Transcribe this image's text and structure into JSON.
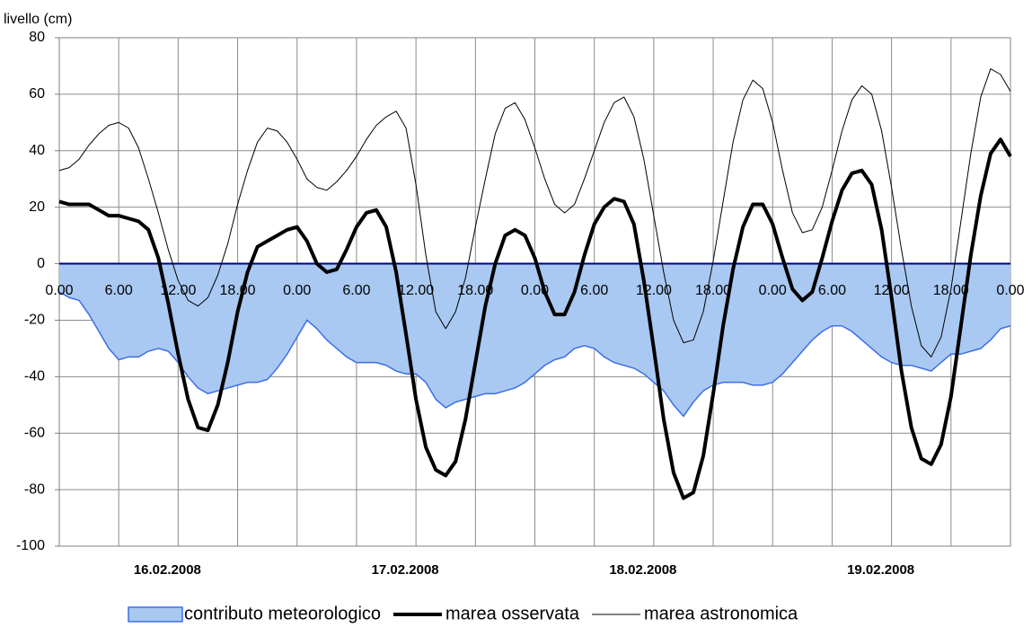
{
  "chart_data": {
    "type": "line",
    "y_label": "livello (cm)",
    "x": [
      0,
      1,
      2,
      3,
      4,
      5,
      6,
      7,
      8,
      9,
      10,
      11,
      12,
      13,
      14,
      15,
      16,
      17,
      18,
      19,
      20,
      21,
      22,
      23,
      24,
      25,
      26,
      27,
      28,
      29,
      30,
      31,
      32,
      33,
      34,
      35,
      36,
      37,
      38,
      39,
      40,
      41,
      42,
      43,
      44,
      45,
      46,
      47,
      48,
      49,
      50,
      51,
      52,
      53,
      54,
      55,
      56,
      57,
      58,
      59,
      60,
      61,
      62,
      63,
      64,
      65,
      66,
      67,
      68,
      69,
      70,
      71,
      72,
      73,
      74,
      75,
      76,
      77,
      78,
      79,
      80,
      81,
      82,
      83,
      84,
      85,
      86,
      87,
      88,
      89,
      90,
      91,
      92,
      93,
      94,
      95,
      96
    ],
    "xlim": [
      0,
      96
    ],
    "xticks": [
      {
        "value": 0,
        "label": "0.00"
      },
      {
        "value": 6,
        "label": "6.00"
      },
      {
        "value": 12,
        "label": "12.00"
      },
      {
        "value": 18,
        "label": "18.00"
      },
      {
        "value": 24,
        "label": "0.00"
      },
      {
        "value": 30,
        "label": "6.00"
      },
      {
        "value": 36,
        "label": "12.00"
      },
      {
        "value": 42,
        "label": "18.00"
      },
      {
        "value": 48,
        "label": "0.00"
      },
      {
        "value": 54,
        "label": "6.00"
      },
      {
        "value": 60,
        "label": "12.00"
      },
      {
        "value": 66,
        "label": "18.00"
      },
      {
        "value": 72,
        "label": "0.00"
      },
      {
        "value": 78,
        "label": "6.00"
      },
      {
        "value": 84,
        "label": "12.00"
      },
      {
        "value": 90,
        "label": "18.00"
      },
      {
        "value": 96,
        "label": "0.00"
      }
    ],
    "day_labels": [
      "16.02.2008",
      "17.02.2008",
      "18.02.2008",
      "19.02.2008"
    ],
    "ylim": [
      -100,
      80
    ],
    "yticks": [
      -100,
      -80,
      -60,
      -40,
      -20,
      0,
      20,
      40,
      60,
      80
    ],
    "grid": true,
    "legend": "bottom",
    "series": [
      {
        "name": "contributo meteorologico",
        "kind": "area",
        "color": "#a9c9f2",
        "edge": "#3d6ee6",
        "values": [
          -10,
          -12,
          -13,
          -18,
          -24,
          -30,
          -34,
          -33,
          -33,
          -31,
          -30,
          -31,
          -35,
          -40,
          -44,
          -46,
          -45,
          -44,
          -43,
          -42,
          -42,
          -41,
          -37,
          -32,
          -26,
          -20,
          -23,
          -27,
          -30,
          -33,
          -35,
          -35,
          -35,
          -36,
          -38,
          -39,
          -39,
          -42,
          -48,
          -51,
          -49,
          -48,
          -47,
          -46,
          -46,
          -45,
          -44,
          -42,
          -39,
          -36,
          -34,
          -33,
          -30,
          -29,
          -30,
          -33,
          -35,
          -36,
          -37,
          -39,
          -42,
          -45,
          -50,
          -54,
          -49,
          -45,
          -43,
          -42,
          -42,
          -42,
          -43,
          -43,
          -42,
          -39,
          -35,
          -31,
          -27,
          -24,
          -22,
          -22,
          -24,
          -27,
          -30,
          -33,
          -35,
          -36,
          -36,
          -37,
          -38,
          -35,
          -32,
          -32,
          -31,
          -30,
          -27,
          -23,
          -22
        ]
      },
      {
        "name": "marea osservata",
        "kind": "line",
        "color": "#000000",
        "width": 4,
        "values": [
          22,
          21,
          21,
          21,
          19,
          17,
          17,
          16,
          15,
          12,
          2,
          -14,
          -32,
          -48,
          -58,
          -59,
          -50,
          -35,
          -17,
          -3,
          6,
          8,
          10,
          12,
          13,
          8,
          0,
          -3,
          -2,
          5,
          13,
          18,
          19,
          13,
          -3,
          -25,
          -48,
          -65,
          -73,
          -75,
          -70,
          -55,
          -35,
          -15,
          0,
          10,
          12,
          10,
          2,
          -10,
          -18,
          -18,
          -10,
          3,
          14,
          20,
          23,
          22,
          14,
          -6,
          -30,
          -55,
          -74,
          -83,
          -81,
          -68,
          -46,
          -22,
          -2,
          13,
          21,
          21,
          14,
          2,
          -9,
          -13,
          -10,
          2,
          15,
          26,
          32,
          33,
          28,
          12,
          -12,
          -38,
          -58,
          -69,
          -71,
          -64,
          -47,
          -22,
          3,
          24,
          39,
          44,
          38
        ]
      },
      {
        "name": "marea astronomica",
        "kind": "line",
        "color": "#000000",
        "width": 1,
        "values": [
          33,
          34,
          37,
          42,
          46,
          49,
          50,
          48,
          41,
          30,
          18,
          5,
          -6,
          -13,
          -15,
          -12,
          -4,
          7,
          21,
          33,
          43,
          48,
          47,
          43,
          37,
          30,
          27,
          26,
          29,
          33,
          38,
          44,
          49,
          52,
          54,
          48,
          28,
          3,
          -17,
          -23,
          -17,
          -5,
          13,
          30,
          46,
          55,
          57,
          51,
          41,
          30,
          21,
          18,
          21,
          30,
          40,
          50,
          57,
          59,
          52,
          37,
          17,
          -3,
          -20,
          -28,
          -27,
          -17,
          1,
          22,
          43,
          58,
          65,
          62,
          50,
          33,
          18,
          11,
          12,
          20,
          33,
          47,
          58,
          63,
          60,
          47,
          27,
          5,
          -15,
          -29,
          -33,
          -26,
          -9,
          15,
          39,
          59,
          69,
          67,
          61
        ]
      }
    ]
  }
}
